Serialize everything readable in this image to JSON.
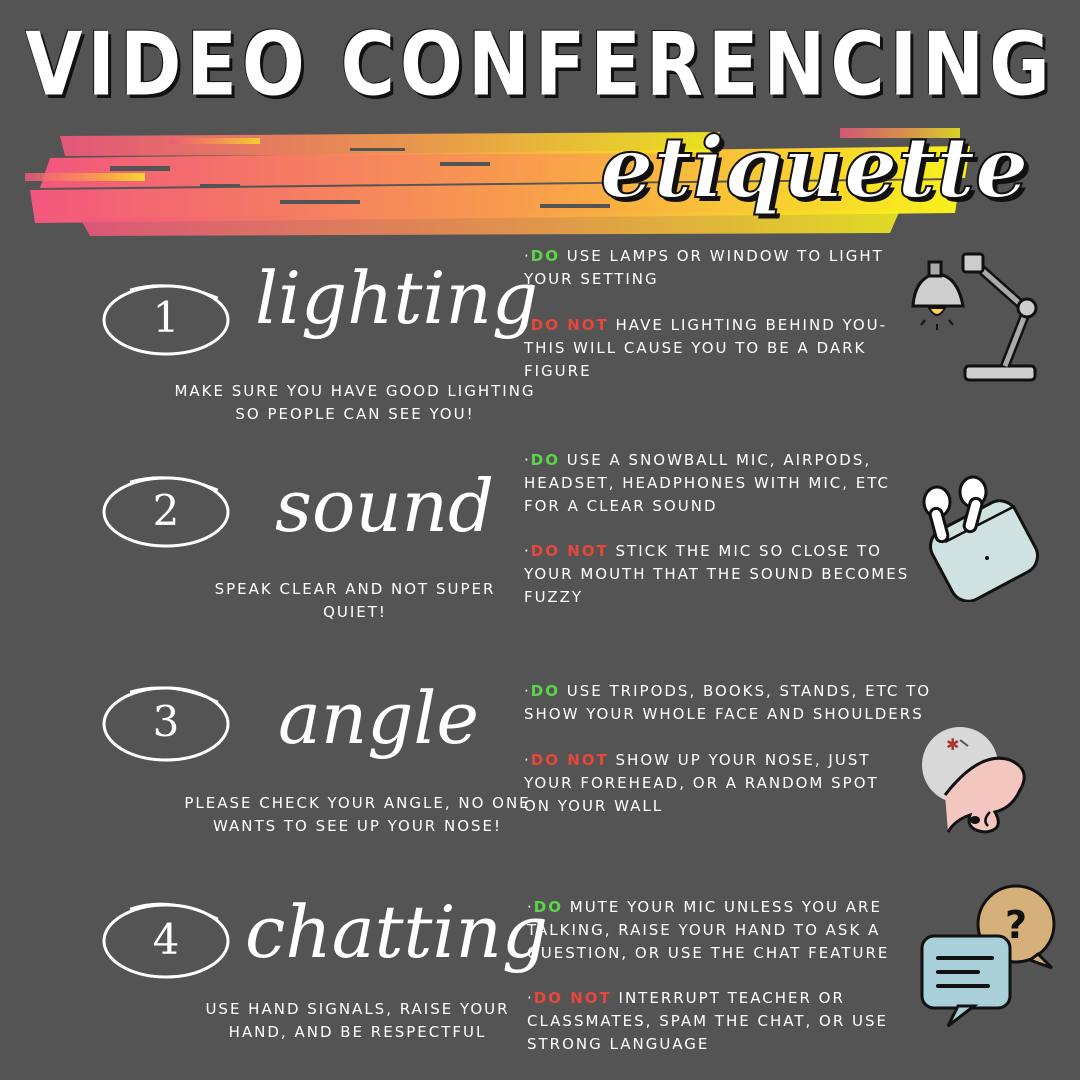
{
  "title": "VIDEO CONFERENCING",
  "subtitle": "etiquette",
  "colors": {
    "background": "#545454",
    "do": "#5bd64a",
    "do_not": "#e8473b",
    "brush_start": "#f2577d",
    "brush_end": "#f8f21c"
  },
  "sections": [
    {
      "number": "1",
      "heading": "lighting",
      "tip": "MAKE SURE YOU HAVE GOOD LIGHTING SO PEOPLE CAN SEE YOU!",
      "do_label": "DO",
      "do_text": "USE LAMPS OR WINDOW TO LIGHT YOUR SETTING",
      "dont_label": "DO NOT",
      "dont_text": "HAVE LIGHTING BEHIND YOU- THIS WILL CAUSE YOU TO BE A DARK FIGURE",
      "icon": "desk-lamp-icon"
    },
    {
      "number": "2",
      "heading": "sound",
      "tip": "SPEAK CLEAR AND NOT SUPER QUIET!",
      "do_label": "DO",
      "do_text": "USE A SNOWBALL MIC, AIRPODS, HEADSET, HEADPHONES WITH MIC, ETC FOR A CLEAR SOUND",
      "dont_label": "DO NOT",
      "dont_text": "STICK THE MIC SO CLOSE TO YOUR MOUTH THAT THE SOUND BECOMES FUZZY",
      "icon": "airpods-icon"
    },
    {
      "number": "3",
      "heading": "angle",
      "tip": "PLEASE CHECK YOUR ANGLE, NO ONE WANTS TO SEE UP YOUR NOSE!",
      "do_label": "DO",
      "do_text": "USE TRIPODS, BOOKS, STANDS, ETC TO SHOW YOUR WHOLE FACE AND SHOULDERS",
      "dont_label": "DO NOT",
      "dont_text": "SHOW UP YOUR NOSE, JUST YOUR FOREHEAD, OR A RANDOM SPOT ON YOUR WALL",
      "icon": "nose-icon"
    },
    {
      "number": "4",
      "heading": "chatting",
      "tip": "USE HAND SIGNALS, RAISE YOUR HAND, AND BE RESPECTFUL",
      "do_label": "DO",
      "do_text": "MUTE YOUR MIC UNLESS YOU ARE TALKING, RAISE YOUR HAND TO ASK A QUESTION, OR USE THE CHAT FEATURE",
      "dont_label": "DO NOT",
      "dont_text": "INTERRUPT TEACHER OR CLASSMATES, SPAM THE CHAT, OR USE STRONG LANGUAGE",
      "icon": "chat-bubbles-icon"
    }
  ]
}
